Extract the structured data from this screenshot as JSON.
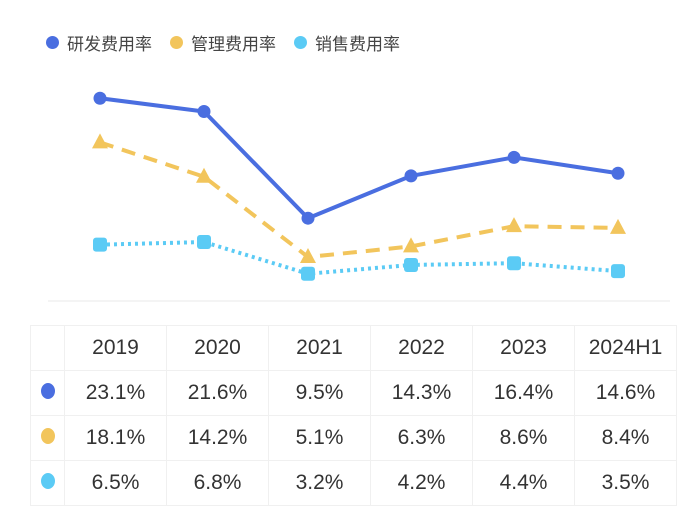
{
  "chart_data": {
    "type": "line",
    "categories": [
      "2019",
      "2020",
      "2021",
      "2022",
      "2023",
      "2024H1"
    ],
    "series": [
      {
        "name": "研发费用率",
        "values": [
          23.1,
          21.6,
          9.5,
          14.3,
          16.4,
          14.6
        ],
        "color": "#4a6ee0",
        "marker": "circle",
        "line": "solid",
        "display": [
          "23.1%",
          "21.6%",
          "9.5%",
          "14.3%",
          "16.4%",
          "14.6%"
        ]
      },
      {
        "name": "管理费用率",
        "values": [
          18.1,
          14.2,
          5.1,
          6.3,
          8.6,
          8.4
        ],
        "color": "#f2c55c",
        "marker": "triangle",
        "line": "dashed",
        "display": [
          "18.1%",
          "14.2%",
          "5.1%",
          "6.3%",
          "8.6%",
          "8.4%"
        ]
      },
      {
        "name": "销售费用率",
        "values": [
          6.5,
          6.8,
          3.2,
          4.2,
          4.4,
          3.5
        ],
        "color": "#5bcbf5",
        "marker": "square",
        "line": "dotted",
        "display": [
          "6.5%",
          "6.8%",
          "3.2%",
          "4.2%",
          "4.4%",
          "3.5%"
        ]
      }
    ],
    "ylim": [
      0,
      25
    ],
    "grid": false,
    "legend": "top-left",
    "table_below": true
  }
}
